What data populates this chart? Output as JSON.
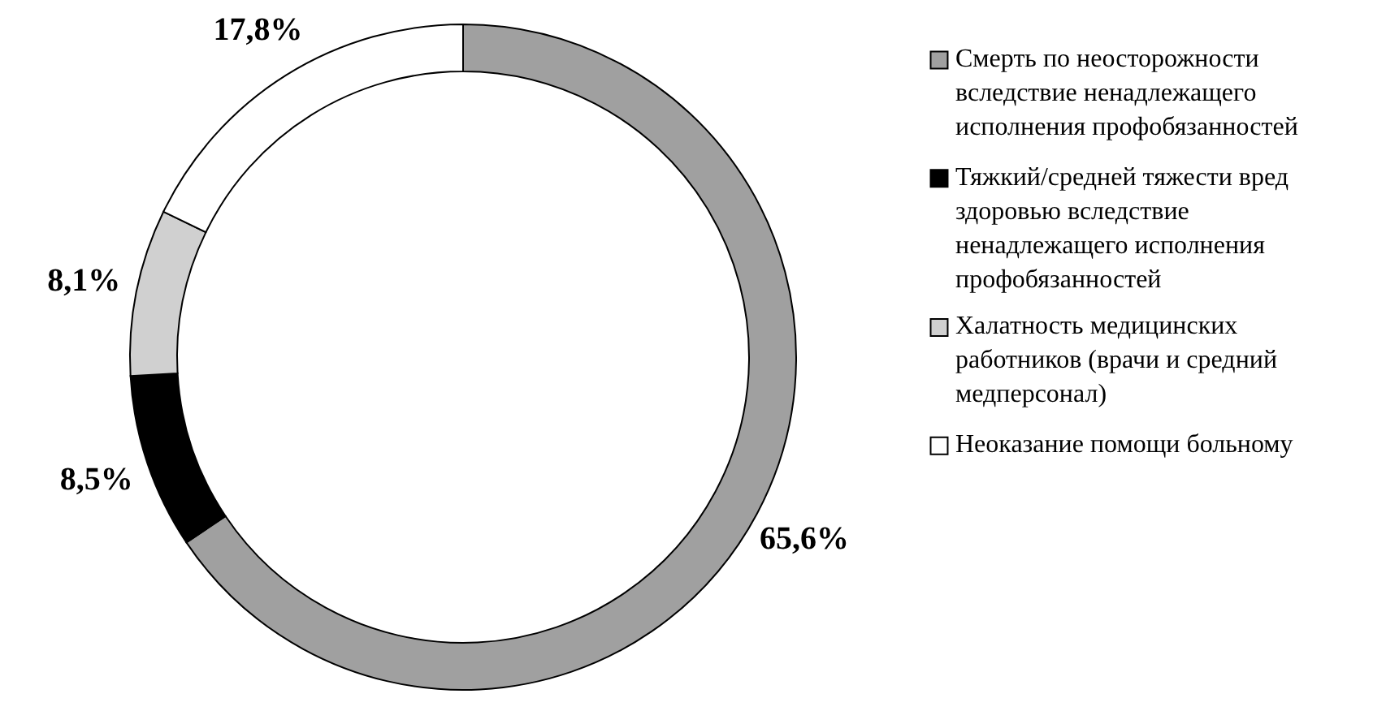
{
  "chart_data": {
    "type": "donut",
    "categories": [
      "Смерть по неосторожности вследствие ненадлежащего исполнения профобязанностей",
      "Тяжкий/средней тяжести вред здоровью вследствие ненадлежащего исполнения профобязанностей",
      "Халатность медицинских работников (врачи и средний медперсонал)",
      "Неоказание помощи больному"
    ],
    "values": [
      65.6,
      8.5,
      8.1,
      17.8
    ],
    "colors": [
      "#a0a0a0",
      "#000000",
      "#d0d0d0",
      "#ffffff"
    ],
    "value_labels": [
      "65,6%",
      "8,5%",
      "8,1%",
      "17,8%"
    ],
    "legend": "right"
  }
}
